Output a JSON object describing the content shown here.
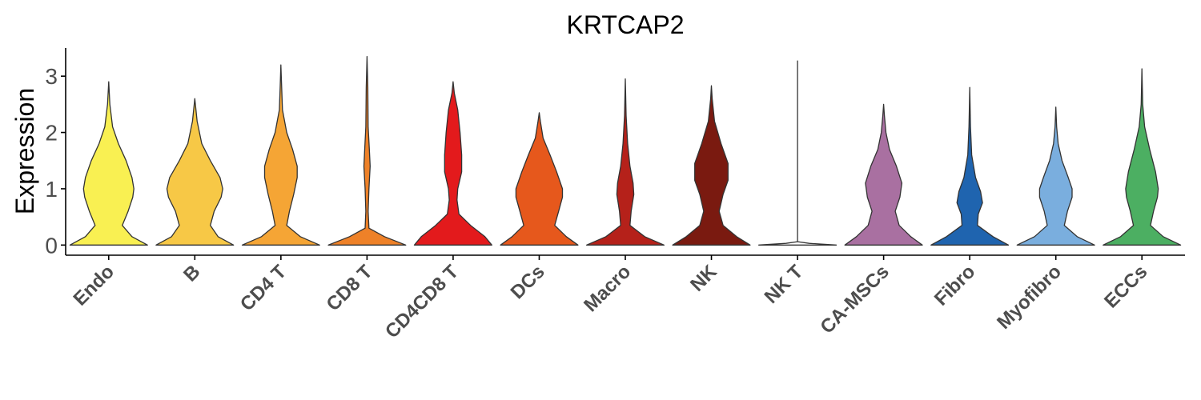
{
  "chart_data": {
    "type": "violin",
    "title": "KRTCAP2",
    "xlabel": "",
    "ylabel": "Expression",
    "ylim": [
      -0.18,
      3.5
    ],
    "yticks": [
      0,
      1,
      2,
      3
    ],
    "grid": false,
    "legend": "none",
    "categories": [
      "Endo",
      "B",
      "CD4 T",
      "CD8 T",
      "CD4CD8 T",
      "DCs",
      "Macro",
      "NK",
      "NK T",
      "CA-MSCs",
      "Fibro",
      "Myofibro",
      "ECCs"
    ],
    "colors": [
      "#F9F052",
      "#F7C846",
      "#F5A535",
      "#EE8128",
      "#E31A1C",
      "#E6581C",
      "#B5211A",
      "#7A1A10",
      "#FFFFFF",
      "#A970A1",
      "#1F64AF",
      "#7AAEDE",
      "#4CAF62"
    ],
    "max_values": [
      2.9,
      2.6,
      3.2,
      3.35,
      2.9,
      2.35,
      2.95,
      2.83,
      3.27,
      2.5,
      2.8,
      2.45,
      3.13
    ],
    "density": [
      [
        [
          0,
          1.0
        ],
        [
          0.15,
          0.6
        ],
        [
          0.35,
          0.35
        ],
        [
          0.6,
          0.5
        ],
        [
          0.85,
          0.62
        ],
        [
          1.0,
          0.65
        ],
        [
          1.2,
          0.6
        ],
        [
          1.5,
          0.45
        ],
        [
          1.8,
          0.25
        ],
        [
          2.1,
          0.1
        ],
        [
          2.5,
          0.03
        ],
        [
          2.9,
          0
        ]
      ],
      [
        [
          0,
          1.0
        ],
        [
          0.15,
          0.6
        ],
        [
          0.35,
          0.4
        ],
        [
          0.6,
          0.5
        ],
        [
          0.85,
          0.68
        ],
        [
          1.0,
          0.72
        ],
        [
          1.2,
          0.65
        ],
        [
          1.5,
          0.4
        ],
        [
          1.8,
          0.18
        ],
        [
          2.2,
          0.06
        ],
        [
          2.6,
          0
        ]
      ],
      [
        [
          0,
          1.0
        ],
        [
          0.15,
          0.5
        ],
        [
          0.35,
          0.15
        ],
        [
          0.6,
          0.22
        ],
        [
          0.9,
          0.33
        ],
        [
          1.2,
          0.42
        ],
        [
          1.4,
          0.42
        ],
        [
          1.7,
          0.3
        ],
        [
          2.0,
          0.15
        ],
        [
          2.4,
          0.04
        ],
        [
          2.8,
          0.02
        ],
        [
          3.2,
          0
        ]
      ],
      [
        [
          0,
          1.0
        ],
        [
          0.15,
          0.45
        ],
        [
          0.3,
          0.05
        ],
        [
          0.6,
          0.03
        ],
        [
          1.0,
          0.05
        ],
        [
          1.4,
          0.08
        ],
        [
          1.7,
          0.06
        ],
        [
          2.1,
          0.03
        ],
        [
          2.8,
          0.02
        ],
        [
          3.35,
          0
        ]
      ],
      [
        [
          0,
          1.0
        ],
        [
          0.15,
          0.82
        ],
        [
          0.35,
          0.45
        ],
        [
          0.55,
          0.15
        ],
        [
          0.8,
          0.1
        ],
        [
          1.0,
          0.12
        ],
        [
          1.3,
          0.22
        ],
        [
          1.6,
          0.22
        ],
        [
          2.0,
          0.18
        ],
        [
          2.4,
          0.12
        ],
        [
          2.7,
          0.03
        ],
        [
          2.9,
          0
        ]
      ],
      [
        [
          0,
          1.0
        ],
        [
          0.15,
          0.7
        ],
        [
          0.35,
          0.4
        ],
        [
          0.6,
          0.5
        ],
        [
          0.85,
          0.6
        ],
        [
          1.0,
          0.6
        ],
        [
          1.3,
          0.45
        ],
        [
          1.6,
          0.28
        ],
        [
          1.9,
          0.1
        ],
        [
          2.2,
          0.03
        ],
        [
          2.35,
          0
        ]
      ],
      [
        [
          0,
          1.0
        ],
        [
          0.15,
          0.5
        ],
        [
          0.35,
          0.12
        ],
        [
          0.6,
          0.15
        ],
        [
          0.9,
          0.22
        ],
        [
          1.1,
          0.2
        ],
        [
          1.4,
          0.12
        ],
        [
          1.8,
          0.06
        ],
        [
          2.3,
          0.02
        ],
        [
          2.95,
          0
        ]
      ],
      [
        [
          0,
          1.0
        ],
        [
          0.15,
          0.65
        ],
        [
          0.35,
          0.3
        ],
        [
          0.6,
          0.2
        ],
        [
          0.9,
          0.3
        ],
        [
          1.15,
          0.43
        ],
        [
          1.45,
          0.43
        ],
        [
          1.8,
          0.25
        ],
        [
          2.2,
          0.08
        ],
        [
          2.6,
          0.02
        ],
        [
          2.83,
          0
        ]
      ],
      [
        [
          0,
          1.0
        ],
        [
          0.03,
          0.3
        ],
        [
          0.06,
          0
        ],
        [
          1.0,
          0
        ],
        [
          2.0,
          0
        ],
        [
          3.27,
          0
        ]
      ],
      [
        [
          0,
          1.0
        ],
        [
          0.15,
          0.7
        ],
        [
          0.35,
          0.4
        ],
        [
          0.6,
          0.3
        ],
        [
          0.85,
          0.42
        ],
        [
          1.1,
          0.47
        ],
        [
          1.4,
          0.33
        ],
        [
          1.7,
          0.15
        ],
        [
          2.0,
          0.06
        ],
        [
          2.3,
          0.02
        ],
        [
          2.5,
          0
        ]
      ],
      [
        [
          0,
          1.0
        ],
        [
          0.15,
          0.6
        ],
        [
          0.35,
          0.2
        ],
        [
          0.55,
          0.22
        ],
        [
          0.75,
          0.33
        ],
        [
          0.95,
          0.28
        ],
        [
          1.2,
          0.15
        ],
        [
          1.6,
          0.05
        ],
        [
          2.1,
          0.02
        ],
        [
          2.8,
          0
        ]
      ],
      [
        [
          0,
          1.0
        ],
        [
          0.15,
          0.55
        ],
        [
          0.35,
          0.22
        ],
        [
          0.6,
          0.3
        ],
        [
          0.85,
          0.42
        ],
        [
          1.0,
          0.42
        ],
        [
          1.2,
          0.32
        ],
        [
          1.5,
          0.16
        ],
        [
          1.8,
          0.06
        ],
        [
          2.1,
          0.02
        ],
        [
          2.45,
          0
        ]
      ],
      [
        [
          0,
          1.0
        ],
        [
          0.15,
          0.55
        ],
        [
          0.35,
          0.22
        ],
        [
          0.6,
          0.3
        ],
        [
          0.85,
          0.4
        ],
        [
          1.0,
          0.42
        ],
        [
          1.3,
          0.35
        ],
        [
          1.7,
          0.2
        ],
        [
          2.1,
          0.07
        ],
        [
          2.5,
          0.02
        ],
        [
          3.13,
          0
        ]
      ]
    ]
  }
}
